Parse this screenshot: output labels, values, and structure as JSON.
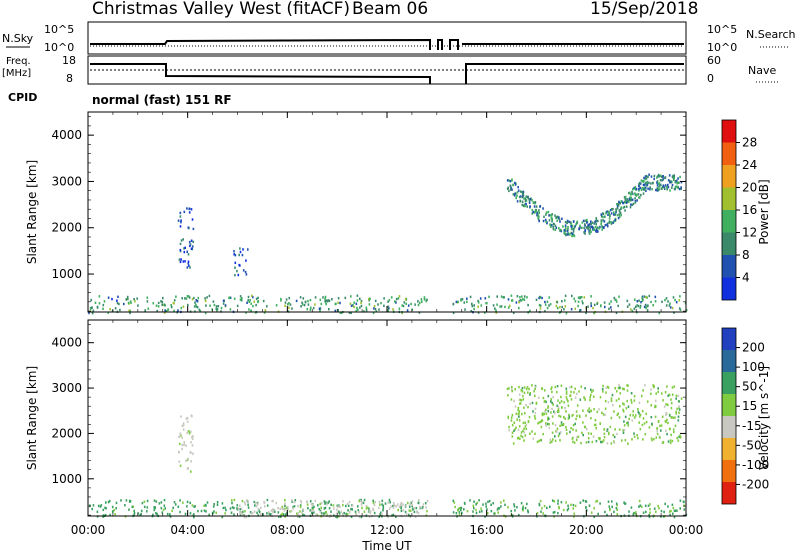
{
  "header": {
    "title": "Christmas Valley West (fitACF)",
    "beam": "Beam 06",
    "date": "15/Sep/2018"
  },
  "status": {
    "nsky_label": "N.Sky",
    "nsky_ticks": [
      "10^5",
      "10^0"
    ],
    "nsearch_label": "N.Search",
    "nsearch_ticks": [
      "10^5",
      "10^0"
    ],
    "freq_label": [
      "Freq.",
      "[MHz]"
    ],
    "freq_ticks": [
      "18",
      "8"
    ],
    "nave_label": "Nave",
    "nave_ticks": [
      "60",
      "0"
    ],
    "cpid_label": "CPID",
    "cpid_text": "normal (fast) 151 RF"
  },
  "chart_data": [
    {
      "type": "heatmap",
      "name": "power",
      "ylabel": "Slant Range [km]",
      "xlabel": "",
      "ylim": [
        180,
        4500
      ],
      "y_ticks": [
        "1000",
        "2000",
        "3000",
        "4000"
      ],
      "colorbar": {
        "label": "Power [dB]",
        "ticks": [
          "4",
          "8",
          "12",
          "16",
          "20",
          "24",
          "28"
        ],
        "colors": [
          "#1030e0",
          "#2050b0",
          "#3a8a6a",
          "#40b060",
          "#a0c030",
          "#f0a020",
          "#f06010",
          "#e01010"
        ]
      },
      "regions": [
        {
          "t": [
            0.0,
            13.6
          ],
          "r": [
            180,
            560
          ],
          "value": 12,
          "desc": "near-range ground scatter"
        },
        {
          "t": [
            0.9,
            1.7
          ],
          "r": [
            430,
            500
          ],
          "value": 6
        },
        {
          "t": [
            6.0,
            7.2
          ],
          "r": [
            440,
            560
          ],
          "value": 14
        },
        {
          "t": [
            14.6,
            24.0
          ],
          "r": [
            180,
            560
          ],
          "value": 12
        },
        {
          "t": [
            3.6,
            4.2
          ],
          "r": [
            1150,
            2500
          ],
          "value": 6
        },
        {
          "t": [
            5.8,
            6.4
          ],
          "r": [
            1000,
            1600
          ],
          "value": 6
        },
        {
          "t": [
            16.8,
            23.8
          ],
          "r": [
            1800,
            3100
          ],
          "value": 10,
          "desc": "curved far-range echo band"
        }
      ]
    },
    {
      "type": "heatmap",
      "name": "velocity",
      "ylabel": "Slant Range [km]",
      "xlabel": "Time UT",
      "ylim": [
        180,
        4500
      ],
      "y_ticks": [
        "1000",
        "2000",
        "3000",
        "4000"
      ],
      "x_ticks": [
        "00:00",
        "04:00",
        "08:00",
        "12:00",
        "16:00",
        "20:00",
        "00:00"
      ],
      "x_range_hours": [
        0,
        24
      ],
      "colorbar": {
        "label": "Velocity [m s^-1]",
        "ticks": [
          "200",
          "100",
          "50",
          "15",
          "-15",
          "-50",
          "-100",
          "-200"
        ],
        "colors": [
          "#2040c0",
          "#2a6a9a",
          "#3aa060",
          "#80cc40",
          "#c8c8c0",
          "#f0b030",
          "#f07010",
          "#e02010"
        ]
      },
      "regions": [
        {
          "t": [
            0.0,
            13.6
          ],
          "r": [
            180,
            560
          ],
          "value": 30
        },
        {
          "t": [
            6.0,
            13.6
          ],
          "r": [
            180,
            560
          ],
          "value": -30
        },
        {
          "t": [
            14.6,
            24.0
          ],
          "r": [
            180,
            560
          ],
          "value": 20
        },
        {
          "t": [
            3.6,
            4.2
          ],
          "r": [
            1150,
            2500
          ],
          "value": -30
        },
        {
          "t": [
            16.8,
            23.8
          ],
          "r": [
            1800,
            3100
          ],
          "value": 0
        }
      ]
    }
  ],
  "gap_hours": [
    13.7,
    14.6
  ]
}
